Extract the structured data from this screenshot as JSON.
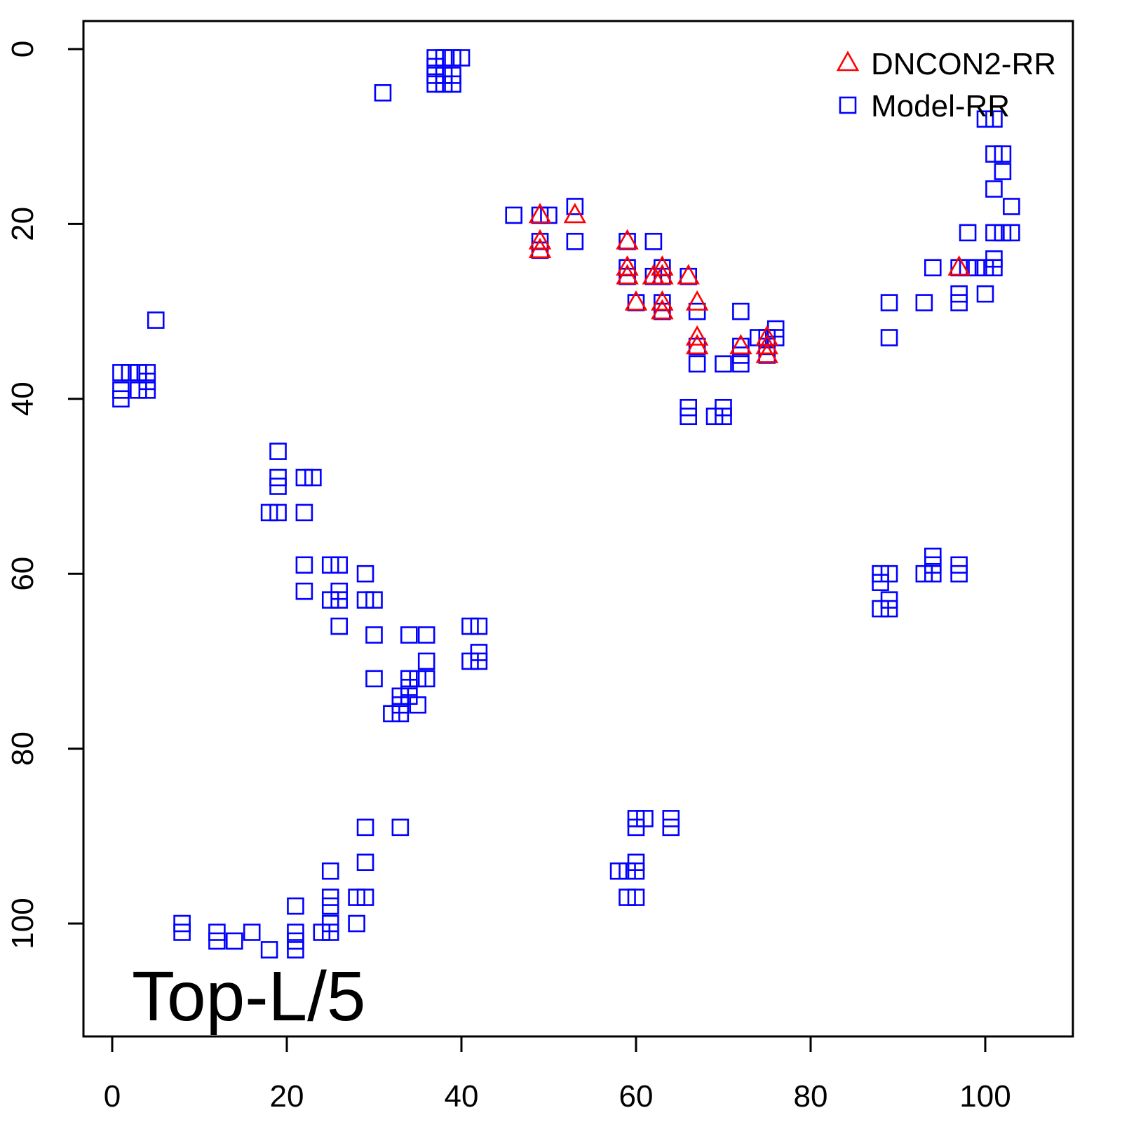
{
  "chart_data": {
    "type": "scatter",
    "title": "",
    "xlabel": "",
    "ylabel": "",
    "xlim": [
      -3,
      113
    ],
    "ylim": [
      113,
      -3
    ],
    "y_axis_reversed": true,
    "grid": false,
    "legend_position": "top-right",
    "x_ticks": [
      "0",
      "20",
      "40",
      "60",
      "80",
      "100"
    ],
    "y_ticks": [
      "0",
      "20",
      "40",
      "60",
      "80",
      "100"
    ],
    "annotation": "Top-L/5",
    "series": [
      {
        "name": "DNCON2-RR",
        "marker": "triangle",
        "color": "#ff0000",
        "points": [
          [
            49,
            19
          ],
          [
            49,
            22
          ],
          [
            49,
            23
          ],
          [
            53,
            19
          ],
          [
            59,
            22
          ],
          [
            59,
            25
          ],
          [
            59,
            26
          ],
          [
            60,
            29
          ],
          [
            62,
            26
          ],
          [
            63,
            25
          ],
          [
            63,
            26
          ],
          [
            63,
            29
          ],
          [
            63,
            30
          ],
          [
            66,
            26
          ],
          [
            67,
            29
          ],
          [
            67,
            33
          ],
          [
            67,
            34
          ],
          [
            72,
            34
          ],
          [
            75,
            33
          ],
          [
            75,
            34
          ],
          [
            75,
            35
          ],
          [
            97,
            25
          ]
        ]
      },
      {
        "name": "Model-RR",
        "marker": "square",
        "color": "#0000ff",
        "points": [
          [
            1,
            37
          ],
          [
            1,
            39
          ],
          [
            1,
            40
          ],
          [
            2,
            37
          ],
          [
            3,
            37
          ],
          [
            3,
            39
          ],
          [
            4,
            37
          ],
          [
            4,
            38
          ],
          [
            4,
            39
          ],
          [
            5,
            31
          ],
          [
            8,
            100
          ],
          [
            8,
            101
          ],
          [
            12,
            101
          ],
          [
            12,
            102
          ],
          [
            14,
            102
          ],
          [
            16,
            101
          ],
          [
            18,
            103
          ],
          [
            18,
            53
          ],
          [
            19,
            46
          ],
          [
            19,
            49
          ],
          [
            19,
            50
          ],
          [
            19,
            53
          ],
          [
            21,
            98
          ],
          [
            21,
            101
          ],
          [
            21,
            102
          ],
          [
            21,
            103
          ],
          [
            22,
            49
          ],
          [
            22,
            53
          ],
          [
            22,
            59
          ],
          [
            22,
            62
          ],
          [
            23,
            49
          ],
          [
            24,
            101
          ],
          [
            25,
            59
          ],
          [
            25,
            63
          ],
          [
            25,
            94
          ],
          [
            25,
            97
          ],
          [
            25,
            98
          ],
          [
            25,
            100
          ],
          [
            25,
            101
          ],
          [
            26,
            59
          ],
          [
            26,
            62
          ],
          [
            26,
            63
          ],
          [
            26,
            66
          ],
          [
            28,
            97
          ],
          [
            28,
            100
          ],
          [
            29,
            60
          ],
          [
            29,
            63
          ],
          [
            29,
            89
          ],
          [
            29,
            93
          ],
          [
            29,
            97
          ],
          [
            30,
            63
          ],
          [
            30,
            67
          ],
          [
            30,
            72
          ],
          [
            31,
            5
          ],
          [
            32,
            76
          ],
          [
            33,
            74
          ],
          [
            33,
            75
          ],
          [
            33,
            76
          ],
          [
            33,
            89
          ],
          [
            34,
            67
          ],
          [
            34,
            72
          ],
          [
            34,
            73
          ],
          [
            34,
            74
          ],
          [
            35,
            72
          ],
          [
            35,
            75
          ],
          [
            36,
            67
          ],
          [
            36,
            70
          ],
          [
            36,
            72
          ],
          [
            37,
            1
          ],
          [
            37,
            2
          ],
          [
            37,
            3
          ],
          [
            37,
            4
          ],
          [
            38,
            1
          ],
          [
            38,
            3
          ],
          [
            38,
            4
          ],
          [
            39,
            1
          ],
          [
            39,
            3
          ],
          [
            39,
            4
          ],
          [
            40,
            1
          ],
          [
            41,
            66
          ],
          [
            41,
            70
          ],
          [
            42,
            66
          ],
          [
            42,
            69
          ],
          [
            42,
            70
          ],
          [
            46,
            19
          ],
          [
            49,
            19
          ],
          [
            49,
            22
          ],
          [
            49,
            23
          ],
          [
            50,
            19
          ],
          [
            53,
            18
          ],
          [
            53,
            22
          ],
          [
            58,
            94
          ],
          [
            59,
            22
          ],
          [
            59,
            25
          ],
          [
            59,
            26
          ],
          [
            59,
            94
          ],
          [
            59,
            97
          ],
          [
            60,
            29
          ],
          [
            60,
            88
          ],
          [
            60,
            89
          ],
          [
            60,
            93
          ],
          [
            60,
            94
          ],
          [
            60,
            97
          ],
          [
            61,
            88
          ],
          [
            62,
            22
          ],
          [
            62,
            26
          ],
          [
            63,
            25
          ],
          [
            63,
            26
          ],
          [
            63,
            29
          ],
          [
            63,
            30
          ],
          [
            64,
            88
          ],
          [
            64,
            89
          ],
          [
            66,
            26
          ],
          [
            66,
            41
          ],
          [
            66,
            42
          ],
          [
            67,
            30
          ],
          [
            67,
            34
          ],
          [
            67,
            36
          ],
          [
            69,
            42
          ],
          [
            70,
            36
          ],
          [
            70,
            41
          ],
          [
            70,
            42
          ],
          [
            72,
            30
          ],
          [
            72,
            34
          ],
          [
            72,
            35
          ],
          [
            72,
            36
          ],
          [
            74,
            33
          ],
          [
            75,
            33
          ],
          [
            75,
            34
          ],
          [
            75,
            35
          ],
          [
            76,
            32
          ],
          [
            76,
            33
          ],
          [
            88,
            60
          ],
          [
            88,
            61
          ],
          [
            88,
            64
          ],
          [
            89,
            29
          ],
          [
            89,
            33
          ],
          [
            89,
            60
          ],
          [
            89,
            63
          ],
          [
            89,
            64
          ],
          [
            93,
            29
          ],
          [
            93,
            60
          ],
          [
            94,
            25
          ],
          [
            94,
            58
          ],
          [
            94,
            59
          ],
          [
            94,
            60
          ],
          [
            97,
            25
          ],
          [
            97,
            28
          ],
          [
            97,
            29
          ],
          [
            97,
            59
          ],
          [
            97,
            60
          ],
          [
            98,
            21
          ],
          [
            98,
            25
          ],
          [
            99,
            25
          ],
          [
            100,
            8
          ],
          [
            100,
            25
          ],
          [
            100,
            28
          ],
          [
            101,
            8
          ],
          [
            101,
            12
          ],
          [
            101,
            16
          ],
          [
            101,
            21
          ],
          [
            101,
            24
          ],
          [
            101,
            25
          ],
          [
            102,
            12
          ],
          [
            102,
            14
          ],
          [
            102,
            21
          ],
          [
            103,
            18
          ],
          [
            103,
            21
          ]
        ]
      }
    ]
  }
}
